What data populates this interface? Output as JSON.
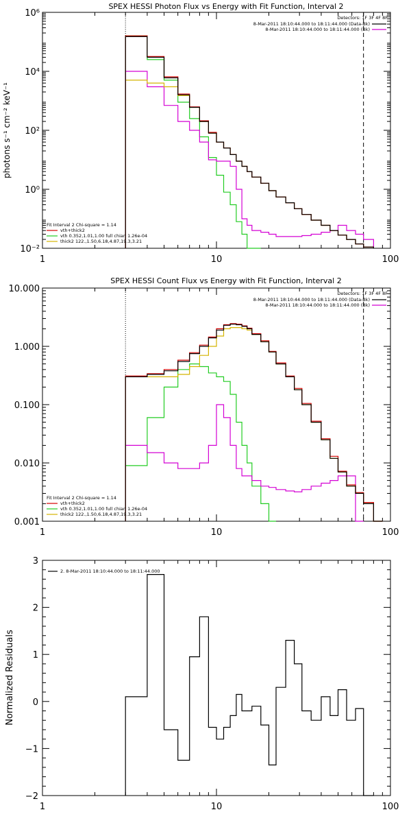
{
  "colors": {
    "black": "#000000",
    "red": "#d40000",
    "green": "#22cc22",
    "magenta": "#d400d4",
    "yellow": "#d4b400"
  },
  "chart_data": [
    {
      "type": "line",
      "title": "SPEX HESSI Photon Flux vs Energy with Fit Function, Interval 2",
      "ylabel": "photons s⁻¹ cm⁻² keV⁻¹",
      "xlabel": "",
      "x_scale": "log",
      "y_scale": "log",
      "xlim": [
        1,
        100
      ],
      "ylim": [
        0.01,
        1000000
      ],
      "x_ticks": [
        "1",
        "10",
        "100"
      ],
      "y_ticks": [
        "10⁻²",
        "10⁰",
        "10²",
        "10⁴",
        "10⁶"
      ],
      "detectors_label": "Detectors: 1F 3F 4F 8F",
      "legend_top": [
        {
          "text": "8-Mar-2011 18:10:44.000 to 18:11:44.000 (Data-Bk)",
          "color": "black"
        },
        {
          "text": "8-Mar-2011 18:10:44.000 to 18:11:44.000 (Bk)",
          "color": "magenta"
        }
      ],
      "legend_bottom": [
        {
          "text": "Fit Interval 2   Chi-square = 1.14",
          "color": "black"
        },
        {
          "text": "vth+thick2",
          "color": "red"
        },
        {
          "text": "vth 0.352,1.01,1.00  full chian 1.26e-04",
          "color": "green"
        },
        {
          "text": "thick2 122.,1.50,6.18,4.87,19.3,3.21",
          "color": "yellow"
        }
      ],
      "bin_edges": [
        3.0,
        3.5,
        4.0,
        4.5,
        5.0,
        5.5,
        6.0,
        6.5,
        7.0,
        7.5,
        8.0,
        8.5,
        9.0,
        9.5,
        10.0,
        11.0,
        12.0,
        13.0,
        14.0,
        15.0,
        16.0,
        18.0,
        20.0,
        22.0,
        25.0,
        28.0,
        31.0,
        35.0,
        40.0,
        45.0,
        50.0,
        56.0,
        63.0,
        70.0,
        80.0
      ],
      "series": [
        {
          "color": "black",
          "values": [
            150000,
            150000,
            30000,
            30000,
            6000,
            6000,
            1600,
            1600,
            600,
            600,
            200,
            200,
            80,
            80,
            40,
            25,
            15,
            9,
            6,
            4,
            2.6,
            1.6,
            0.9,
            0.55,
            0.35,
            0.22,
            0.14,
            0.09,
            0.06,
            0.04,
            0.028,
            0.02,
            0.014,
            0.011
          ]
        },
        {
          "color": "red",
          "values": [
            160000,
            160000,
            32000,
            32000,
            6500,
            6500,
            1700,
            1700,
            620,
            620,
            210,
            210,
            85,
            85,
            40,
            25,
            15,
            9,
            6,
            4,
            2.6,
            1.6,
            0.9,
            0.55,
            0.35,
            0.22,
            0.14,
            0.09,
            0.06,
            0.04,
            0.028,
            0.02,
            0.014,
            0.011
          ]
        },
        {
          "color": "green",
          "values": [
            160000,
            160000,
            25000,
            25000,
            5000,
            5000,
            900,
            900,
            250,
            250,
            60,
            60,
            12,
            12,
            3,
            0.8,
            0.3,
            0.08,
            0.03,
            0.01,
            0.005
          ]
        },
        {
          "color": "magenta",
          "values": [
            10000,
            10000,
            3000,
            3000,
            700,
            700,
            200,
            200,
            100,
            100,
            40,
            40,
            10,
            10,
            9,
            9,
            6,
            1,
            0.1,
            0.06,
            0.04,
            0.035,
            0.03,
            0.025,
            0.025,
            0.025,
            0.027,
            0.03,
            0.035,
            0.04,
            0.06,
            0.04,
            0.03,
            0.02
          ]
        },
        {
          "color": "yellow",
          "values": [
            5000,
            5000,
            4000,
            4000,
            3000,
            3000,
            1500,
            1500,
            600,
            600,
            200,
            200,
            80,
            80,
            40,
            25,
            15,
            9,
            6,
            4,
            2.6,
            1.6,
            0.9,
            0.55,
            0.35,
            0.22,
            0.14,
            0.09,
            0.06,
            0.04,
            0.028,
            0.02,
            0.014,
            0.011
          ]
        }
      ]
    },
    {
      "type": "line",
      "title": "SPEX HESSI Count Flux vs Energy with Fit Function, Interval 2",
      "ylabel": "",
      "xlabel": "",
      "x_scale": "log",
      "y_scale": "log",
      "xlim": [
        1,
        100
      ],
      "ylim": [
        0.001,
        10
      ],
      "x_ticks": [
        "1",
        "10",
        "100"
      ],
      "y_ticks": [
        "0.001",
        "0.010",
        "0.100",
        "1.000",
        "10.000"
      ],
      "detectors_label": "Detectors: 1F 3F 4F 8F",
      "legend_top": [
        {
          "text": "8-Mar-2011 18:10:44.000 to 18:11:44.000 (Data-Bk)",
          "color": "black"
        },
        {
          "text": "8-Mar-2011 18:10:44.000 to 18:11:44.000 (Bk)",
          "color": "magenta"
        }
      ],
      "legend_bottom": [
        {
          "text": "Fit Interval 2   Chi-square = 1.14",
          "color": "black"
        },
        {
          "text": "vth+thick2",
          "color": "red"
        },
        {
          "text": "vth 0.352,1.01,1.00  full chian 1.26e-04",
          "color": "green"
        },
        {
          "text": "thick2 122.,1.50,6.18,4.87,19.3,3.21",
          "color": "yellow"
        }
      ],
      "bin_edges": [
        3.0,
        4.0,
        5.0,
        6.0,
        7.0,
        8.0,
        9.0,
        10.0,
        11.0,
        12.0,
        13.0,
        14.0,
        15.0,
        16.0,
        18.0,
        20.0,
        22.0,
        25.0,
        28.0,
        31.0,
        35.0,
        40.0,
        45.0,
        50.0,
        56.0,
        63.0,
        70.0,
        80.0,
        90.0
      ],
      "series": [
        {
          "color": "black",
          "values": [
            0.3,
            0.33,
            0.38,
            0.55,
            0.75,
            1.0,
            1.4,
            1.9,
            2.3,
            2.4,
            2.35,
            2.2,
            2.0,
            1.6,
            1.2,
            0.8,
            0.5,
            0.3,
            0.18,
            0.1,
            0.05,
            0.025,
            0.012,
            0.007,
            0.004,
            0.003,
            0.002,
            0.001
          ]
        },
        {
          "color": "red",
          "values": [
            0.31,
            0.34,
            0.4,
            0.58,
            0.78,
            1.05,
            1.45,
            2.0,
            2.35,
            2.45,
            2.4,
            2.25,
            2.05,
            1.65,
            1.25,
            0.82,
            0.52,
            0.31,
            0.19,
            0.105,
            0.052,
            0.026,
            0.013,
            0.0072,
            0.0042,
            0.0031,
            0.0021,
            0.001
          ]
        },
        {
          "color": "green",
          "values": [
            0.009,
            0.06,
            0.2,
            0.4,
            0.5,
            0.45,
            0.35,
            0.3,
            0.25,
            0.15,
            0.05,
            0.02,
            0.01,
            0.004,
            0.002,
            0.001
          ]
        },
        {
          "color": "magenta",
          "values": [
            0.02,
            0.015,
            0.01,
            0.008,
            0.008,
            0.01,
            0.02,
            0.1,
            0.06,
            0.02,
            0.008,
            0.006,
            0.006,
            0.005,
            0.004,
            0.0038,
            0.0035,
            0.0033,
            0.0032,
            0.0035,
            0.004,
            0.0045,
            0.005,
            0.006,
            0.006,
            0.001
          ]
        },
        {
          "color": "yellow",
          "values": [
            0.3,
            0.3,
            0.3,
            0.33,
            0.45,
            0.7,
            1.0,
            1.5,
            2.0,
            2.1,
            2.1,
            2.0,
            1.9,
            1.6,
            1.2,
            0.8,
            0.5,
            0.3,
            0.18,
            0.1,
            0.05,
            0.025,
            0.012,
            0.007,
            0.004,
            0.003,
            0.002,
            0.001
          ]
        }
      ]
    },
    {
      "type": "line",
      "title": "",
      "ylabel": "Normalized Residuals",
      "xlabel": "",
      "x_scale": "log",
      "y_scale": "linear",
      "xlim": [
        1,
        100
      ],
      "ylim": [
        -2,
        3
      ],
      "x_ticks": [
        "1",
        "10",
        "100"
      ],
      "y_ticks": [
        "−2",
        "−1",
        "0",
        "1",
        "2",
        "3"
      ],
      "legend_top_left": {
        "text": "2.  8-Mar-2011 18:10:44.000 to 18:11:44.000",
        "color": "black"
      },
      "bin_edges": [
        3.0,
        3.5,
        4.0,
        4.5,
        5.0,
        5.5,
        6.0,
        6.5,
        7.0,
        7.5,
        8.0,
        8.5,
        9.0,
        9.5,
        10.0,
        11.0,
        12.0,
        13.0,
        14.0,
        15.0,
        16.0,
        18.0,
        20.0,
        22.0,
        25.0,
        28.0,
        31.0,
        35.0,
        40.0,
        45.0,
        50.0,
        56.0,
        63.0,
        70.0,
        80.0
      ],
      "series": [
        {
          "color": "black",
          "values": [
            0.1,
            0.1,
            2.7,
            2.7,
            -0.6,
            -0.6,
            -1.25,
            -1.25,
            0.95,
            0.95,
            1.8,
            1.8,
            -0.55,
            -0.55,
            -0.8,
            -0.55,
            -0.3,
            0.15,
            -0.2,
            -0.2,
            -0.1,
            -0.5,
            -1.35,
            0.3,
            1.3,
            0.8,
            -0.2,
            -0.4,
            0.1,
            -0.3,
            0.25,
            -0.4,
            -0.15,
            -2.05
          ]
        }
      ]
    }
  ]
}
